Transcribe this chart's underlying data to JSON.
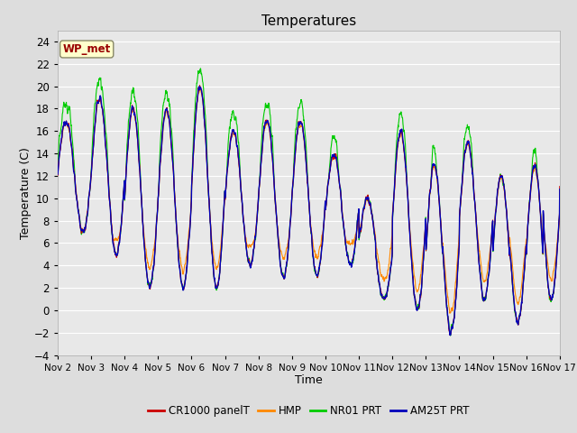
{
  "title": "Temperatures",
  "xlabel": "Time",
  "ylabel": "Temperature (C)",
  "ylim": [
    -4,
    25
  ],
  "yticks": [
    -4,
    -2,
    0,
    2,
    4,
    6,
    8,
    10,
    12,
    14,
    16,
    18,
    20,
    22,
    24
  ],
  "x_tick_labels": [
    "Nov 2",
    "Nov 3",
    "Nov 4",
    "Nov 5",
    "Nov 6",
    "Nov 7",
    "Nov 8",
    "Nov 9",
    "Nov 10",
    "Nov 11",
    "Nov 12",
    "Nov 13",
    "Nov 14",
    "Nov 15",
    "Nov 16",
    "Nov 17"
  ],
  "legend_labels": [
    "CR1000 panelT",
    "HMP",
    "NR01 PRT",
    "AM25T PRT"
  ],
  "colors": {
    "CR1000": "#cc0000",
    "HMP": "#ff8800",
    "NR01": "#00cc00",
    "AM25T": "#0000bb"
  },
  "annotation_text": "WP_met",
  "annotation_color": "#990000",
  "annotation_bg": "#ffffcc",
  "plot_bg": "#e8e8e8",
  "grid_color": "#ffffff",
  "n_points": 2160
}
